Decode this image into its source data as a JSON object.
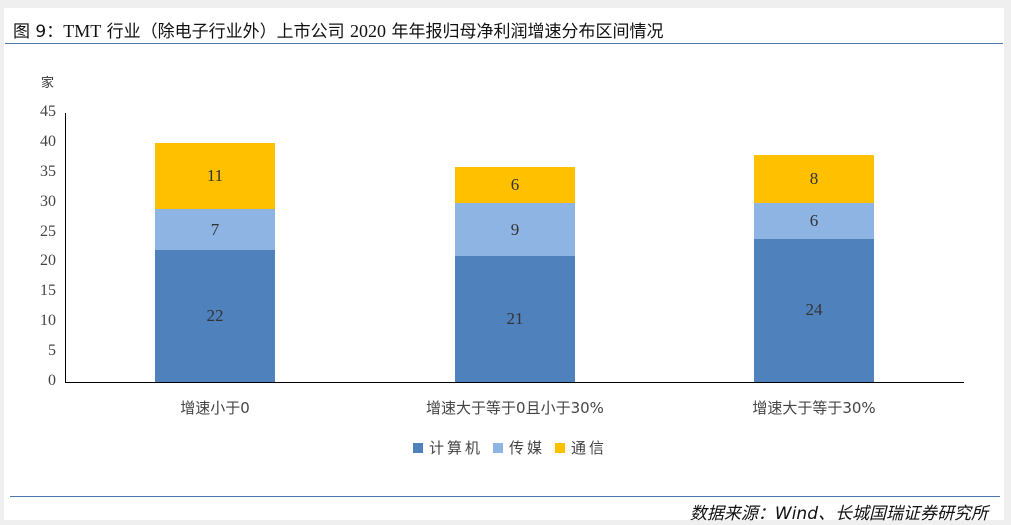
{
  "header": {
    "title_prefix": "图 9：",
    "title_latin": "TMT",
    "title_mid": " 行业（除电子行业外）上市公司 ",
    "title_year": "2020",
    "title_suffix": " 年年报归母净利润增速分布区间情况"
  },
  "footer": {
    "source": "数据来源：Wind、长城国瑞证券研究所"
  },
  "colors": {
    "computer": "#4f81bd",
    "media": "#8eb4e3",
    "telecom": "#ffc000",
    "rule": "#4a78a8"
  },
  "chart_data": {
    "type": "bar",
    "stacked": true,
    "title": "TMT 行业（除电子行业外）上市公司 2020 年年报归母净利润增速分布区间情况",
    "ylabel": "家",
    "xlabel": "",
    "ylim": [
      0,
      45
    ],
    "yticks": [
      0,
      5,
      10,
      15,
      20,
      25,
      30,
      35,
      40,
      45
    ],
    "categories": [
      "增速小于0",
      "增速大于等于0且小于30%",
      "增速大于等于30%"
    ],
    "series": [
      {
        "name": "计算机",
        "color": "#4f81bd",
        "values": [
          22,
          21,
          24
        ]
      },
      {
        "name": "传媒",
        "color": "#8eb4e3",
        "values": [
          7,
          9,
          6
        ]
      },
      {
        "name": "通信",
        "color": "#ffc000",
        "values": [
          11,
          6,
          8
        ]
      }
    ],
    "legend_position": "bottom",
    "grid": false,
    "data_labels": true
  }
}
